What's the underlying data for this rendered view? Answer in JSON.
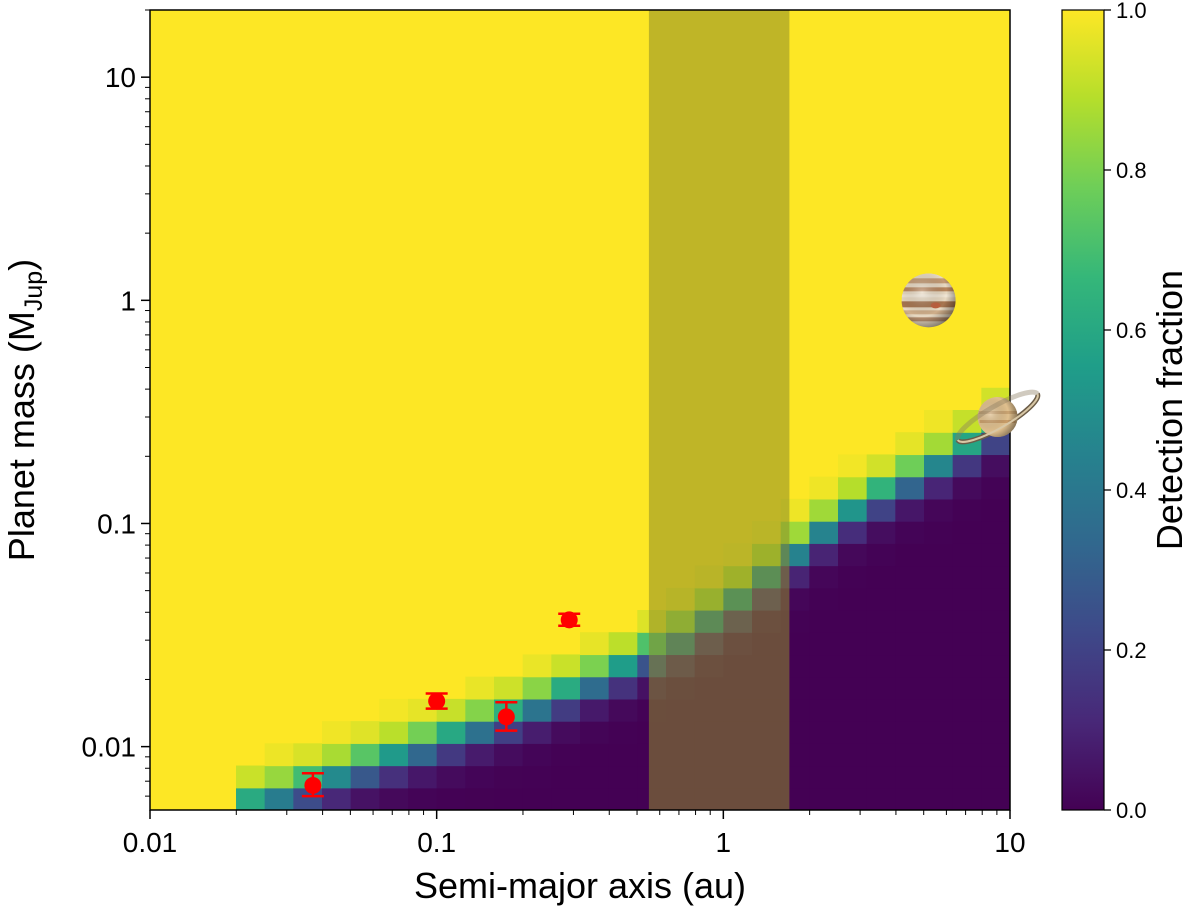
{
  "chart_data": {
    "type": "heatmap",
    "title": "",
    "xlabel": "Semi-major axis (au)",
    "ylabel_main": "Planet mass (M",
    "ylabel_sub": "Jup",
    "ylabel_close": ")",
    "x_scale": "log",
    "y_scale": "log",
    "xlim": [
      0.01,
      10
    ],
    "ylim": [
      0.0052,
      20
    ],
    "x_ticks": [
      {
        "value": 0.01,
        "label": "0.01"
      },
      {
        "value": 0.1,
        "label": "0.1"
      },
      {
        "value": 1,
        "label": "1"
      },
      {
        "value": 10,
        "label": "10"
      }
    ],
    "y_ticks": [
      {
        "value": 0.01,
        "label": "0.01"
      },
      {
        "value": 0.1,
        "label": "0.1"
      },
      {
        "value": 1,
        "label": "1"
      },
      {
        "value": 10,
        "label": "10"
      }
    ],
    "grid": false,
    "colorbar": {
      "label": "Detection fraction",
      "colormap": "viridis",
      "range": [
        0.0,
        1.0
      ],
      "ticks": [
        {
          "value": 0.0,
          "label": "0.0"
        },
        {
          "value": 0.2,
          "label": "0.2"
        },
        {
          "value": 0.4,
          "label": "0.4"
        },
        {
          "value": 0.6,
          "label": "0.6"
        },
        {
          "value": 0.8,
          "label": "0.8"
        },
        {
          "value": 1.0,
          "label": "1.0"
        }
      ]
    },
    "detection_fraction_map": {
      "description_of_values": "Detection fraction per log-spaced (a, M) cell; 1.0 above the transition curve, falling to 0.0 below it",
      "transition_curve": [
        {
          "a": 0.02,
          "m": 0.0053
        },
        {
          "a": 0.03,
          "m": 0.0062
        },
        {
          "a": 0.05,
          "m": 0.0078
        },
        {
          "a": 0.1,
          "m": 0.0105
        },
        {
          "a": 0.2,
          "m": 0.0145
        },
        {
          "a": 0.4,
          "m": 0.021
        },
        {
          "a": 0.7,
          "m": 0.03
        },
        {
          "a": 1.2,
          "m": 0.048
        },
        {
          "a": 2.0,
          "m": 0.085
        },
        {
          "a": 3.0,
          "m": 0.12
        },
        {
          "a": 5.0,
          "m": 0.17
        },
        {
          "a": 8.0,
          "m": 0.24
        },
        {
          "a": 10.0,
          "m": 0.3
        }
      ],
      "transition_width_dex": 0.15
    },
    "shaded_band": {
      "x_range": [
        0.55,
        1.7
      ],
      "color": "#8c8c2a",
      "opacity": 0.55
    },
    "series": [
      {
        "type": "scatter_errorbar",
        "color": "#ff0000",
        "points": [
          {
            "x": 0.037,
            "y": 0.0067,
            "yerr_low": 0.0007,
            "yerr_high": 0.0009
          },
          {
            "x": 0.1,
            "y": 0.016,
            "yerr_low": 0.0012,
            "yerr_high": 0.0013
          },
          {
            "x": 0.175,
            "y": 0.0136,
            "yerr_low": 0.0018,
            "yerr_high": 0.0022
          },
          {
            "x": 0.29,
            "y": 0.037,
            "yerr_low": 0.0022,
            "yerr_high": 0.0024
          }
        ]
      }
    ],
    "reference_planets": [
      {
        "icon": "jupiter-icon",
        "x": 5.2,
        "y": 1.0
      },
      {
        "icon": "saturn-icon",
        "x": 9.5,
        "y": 0.3
      }
    ]
  }
}
